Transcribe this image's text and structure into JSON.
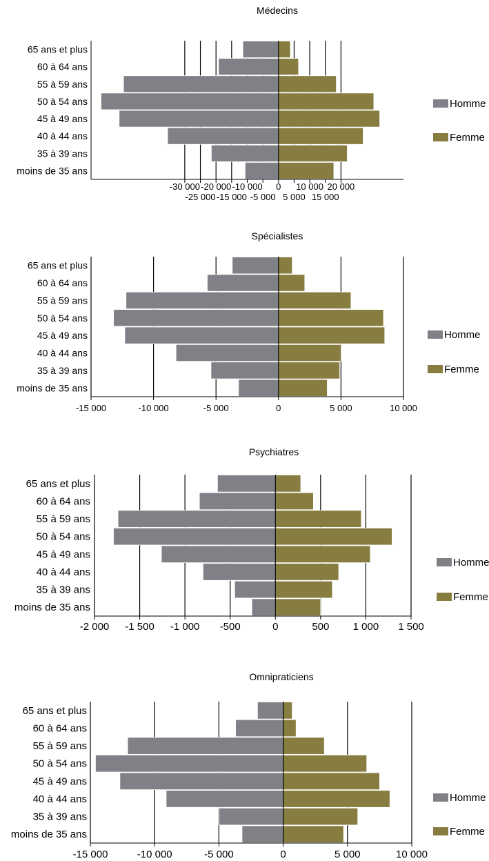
{
  "colors": {
    "homme": "#808187",
    "femme": "#877d41"
  },
  "chart_data": [
    {
      "type": "bar",
      "orientation": "horizontal-pyramid",
      "title": "Médecins",
      "categories": [
        "65 ans et plus",
        "60 à 64 ans",
        "55 à 59 ans",
        "50 à 54 ans",
        "45 à 49 ans",
        "40 à 44 ans",
        "35 à 39 ans",
        "moins de 35 ans"
      ],
      "series": [
        {
          "name": "Homme",
          "values": [
            -11400,
            -19200,
            -49600,
            -56800,
            -51000,
            -35500,
            -21500,
            -10700
          ]
        },
        {
          "name": "Femme",
          "values": [
            3800,
            6400,
            18500,
            30500,
            32400,
            27100,
            22000,
            17700
          ]
        }
      ],
      "xlim": [
        -60000,
        40000
      ],
      "ticks": [
        {
          "v": -30000,
          "label": "-30 000",
          "row": 0
        },
        {
          "v": -25000,
          "label": "-25 000",
          "row": 1
        },
        {
          "v": -20000,
          "label": "-20 000",
          "row": 0
        },
        {
          "v": -15000,
          "label": "-15 000",
          "row": 1
        },
        {
          "v": -10000,
          "label": "-10 000",
          "row": 0
        },
        {
          "v": -5000,
          "label": "-5 000",
          "row": 1
        },
        {
          "v": 0,
          "label": "0",
          "row": 0
        },
        {
          "v": 5000,
          "label": "5 000",
          "row": 1
        },
        {
          "v": 10000,
          "label": "10 000",
          "row": 0
        },
        {
          "v": 15000,
          "label": "15 000",
          "row": 1
        },
        {
          "v": 20000,
          "label": "20 000",
          "row": 0
        }
      ],
      "legend": [
        "Homme",
        "Femme"
      ],
      "legend_position": "right"
    },
    {
      "type": "bar",
      "orientation": "horizontal-pyramid",
      "title": "Spécialistes",
      "categories": [
        "65 ans et plus",
        "60 à 64 ans",
        "55 à 59 ans",
        "50 à 54 ans",
        "45 à 49 ans",
        "40 à 44 ans",
        "35 à 39 ans",
        "moins de 35 ans"
      ],
      "series": [
        {
          "name": "Homme",
          "values": [
            -3700,
            -5700,
            -12200,
            -13200,
            -12300,
            -8200,
            -5400,
            -3200
          ]
        },
        {
          "name": "Femme",
          "values": [
            1100,
            2100,
            5800,
            8400,
            8500,
            5000,
            4900,
            3900
          ]
        }
      ],
      "xlim": [
        -15000,
        10000
      ],
      "ticks": [
        {
          "v": -15000,
          "label": "-15 000",
          "row": 0
        },
        {
          "v": -10000,
          "label": "-10 000",
          "row": 0
        },
        {
          "v": -5000,
          "label": "-5 000",
          "row": 0
        },
        {
          "v": 0,
          "label": "0",
          "row": 0
        },
        {
          "v": 5000,
          "label": "5 000",
          "row": 0
        },
        {
          "v": 10000,
          "label": "10 000",
          "row": 0
        }
      ],
      "legend": [
        "Homme",
        "Femme"
      ],
      "legend_position": "right"
    },
    {
      "type": "bar",
      "orientation": "horizontal-pyramid",
      "title": "Psychiatres",
      "categories": [
        "65 ans et plus",
        "60 à 64 ans",
        "55 à 59 ans",
        "50 à 54 ans",
        "45 à 49 ans",
        "40 à 44 ans",
        "35 à 39 ans",
        "moins de 35 ans"
      ],
      "series": [
        {
          "name": "Homme",
          "values": [
            -640,
            -840,
            -1740,
            -1790,
            -1260,
            -800,
            -450,
            -260
          ]
        },
        {
          "name": "Femme",
          "values": [
            280,
            420,
            950,
            1290,
            1050,
            700,
            630,
            500
          ]
        }
      ],
      "xlim": [
        -2000,
        1500
      ],
      "ticks": [
        {
          "v": -2000,
          "label": "-2 000",
          "row": 0
        },
        {
          "v": -1500,
          "label": "-1 500",
          "row": 0
        },
        {
          "v": -1000,
          "label": "-1 000",
          "row": 0
        },
        {
          "v": -500,
          "label": "-500",
          "row": 0
        },
        {
          "v": 0,
          "label": "0",
          "row": 0
        },
        {
          "v": 500,
          "label": "500",
          "row": 0
        },
        {
          "v": 1000,
          "label": "1 000",
          "row": 0
        },
        {
          "v": 1500,
          "label": "1 500",
          "row": 0
        }
      ],
      "legend": [
        "Homme",
        "Femme"
      ],
      "legend_position": "right"
    },
    {
      "type": "bar",
      "orientation": "horizontal-pyramid",
      "title": "Omnipraticiens",
      "categories": [
        "65 ans et plus",
        "60 à 64 ans",
        "55 à 59 ans",
        "50 à 54 ans",
        "45 à 49 ans",
        "40 à 44 ans",
        "35 à 39 ans",
        "moins de 35 ans"
      ],
      "series": [
        {
          "name": "Homme",
          "values": [
            -2000,
            -3700,
            -12100,
            -14600,
            -12700,
            -9100,
            -5000,
            -3200
          ]
        },
        {
          "name": "Femme",
          "values": [
            700,
            1000,
            3200,
            6500,
            7500,
            8300,
            5800,
            4700
          ]
        }
      ],
      "xlim": [
        -15000,
        10000
      ],
      "ticks": [
        {
          "v": -15000,
          "label": "-15 000",
          "row": 0
        },
        {
          "v": -10000,
          "label": "-10 000",
          "row": 0
        },
        {
          "v": -5000,
          "label": "-5 000",
          "row": 0
        },
        {
          "v": 0,
          "label": "0",
          "row": 0
        },
        {
          "v": 5000,
          "label": "5 000",
          "row": 0
        },
        {
          "v": 10000,
          "label": "10 000",
          "row": 0
        }
      ],
      "legend": [
        "Homme",
        "Femme"
      ],
      "legend_position": "right"
    }
  ]
}
